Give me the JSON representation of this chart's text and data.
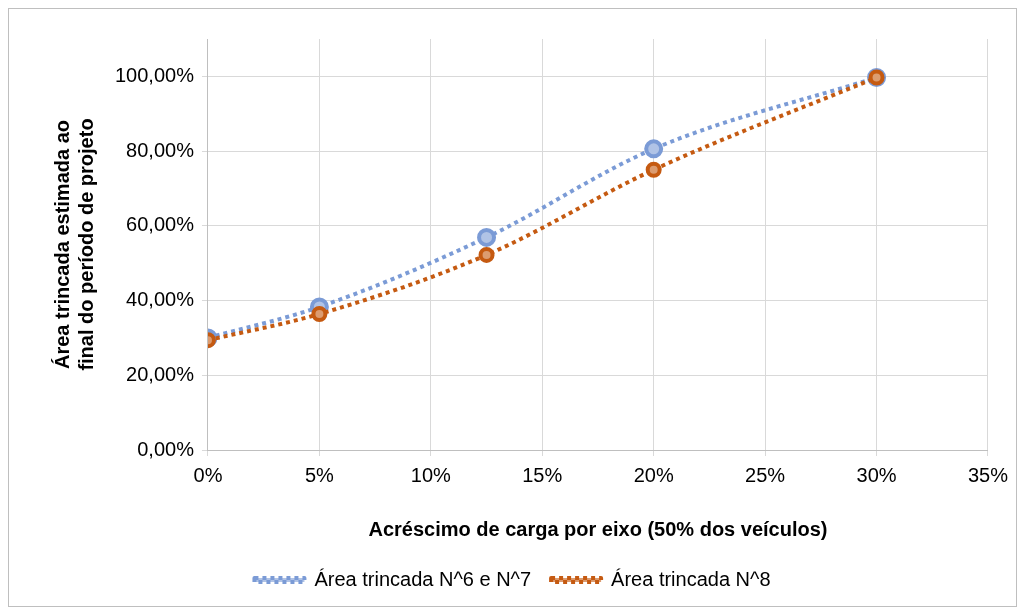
{
  "chart_data": {
    "type": "line",
    "xlabel": "Acréscimo de carga por eixo (50% dos veículos)",
    "ylabel": "Área trincada estimada ao final do período de projeto",
    "series": [
      {
        "name": "Área trincada N^6 e N^7",
        "color": "#7b9bd6",
        "x": [
          0,
          5,
          12.5,
          20,
          30
        ],
        "values": [
          30,
          38.3,
          56.9,
          80.6,
          99.7
        ]
      },
      {
        "name": "Área trincada N^8",
        "color": "#c55a11",
        "x": [
          0,
          5,
          12.5,
          20,
          30
        ],
        "values": [
          29.4,
          36.4,
          52.2,
          75.0,
          99.7
        ]
      }
    ],
    "xlim": [
      0,
      35
    ],
    "xticks": [
      {
        "value": 0,
        "label": "0%"
      },
      {
        "value": 5,
        "label": "5%"
      },
      {
        "value": 10,
        "label": "10%"
      },
      {
        "value": 15,
        "label": "15%"
      },
      {
        "value": 20,
        "label": "20%"
      },
      {
        "value": 25,
        "label": "25%"
      },
      {
        "value": 30,
        "label": "30%"
      },
      {
        "value": 35,
        "label": "35%"
      }
    ],
    "ylim": [
      0,
      110
    ],
    "yticks": [
      {
        "value": 0,
        "label": "0,00%"
      },
      {
        "value": 20,
        "label": "20,00%"
      },
      {
        "value": 40,
        "label": "40,00%"
      },
      {
        "value": 60,
        "label": "60,00%"
      },
      {
        "value": 80,
        "label": "80,00%"
      },
      {
        "value": 100,
        "label": "100,00%"
      }
    ],
    "grid": true,
    "legend": "bottom",
    "marker": "circle",
    "line_style": "dotted"
  }
}
